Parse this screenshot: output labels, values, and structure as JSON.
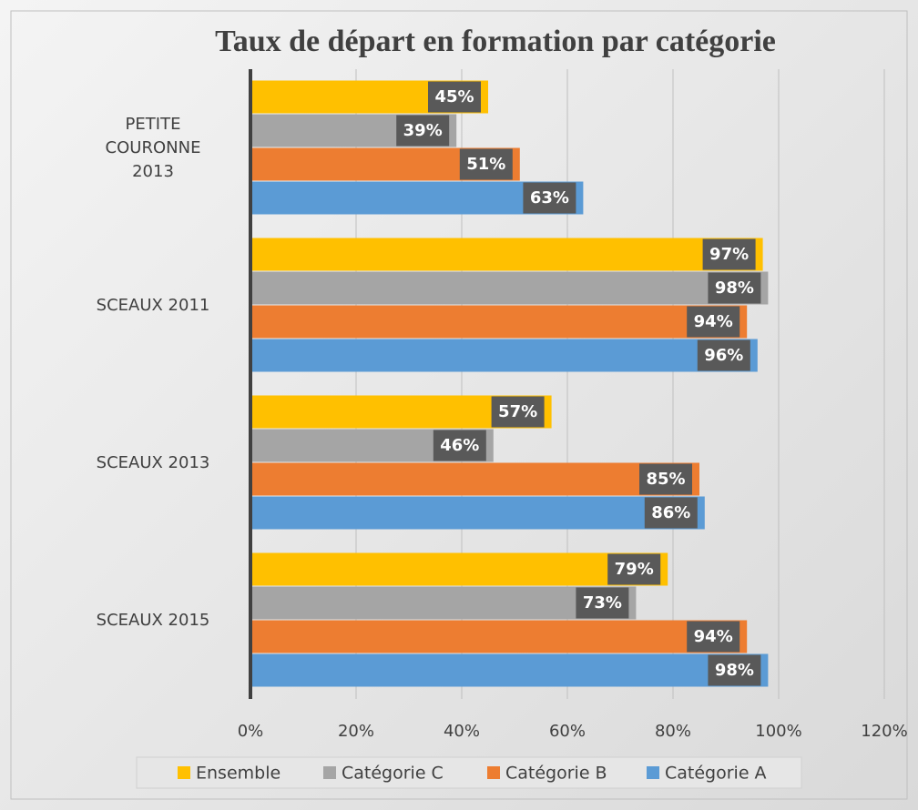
{
  "chart_data": {
    "type": "hbar",
    "title": "Taux de départ en formation par catégorie",
    "categories": [
      "PETITE COURONNE 2013",
      "SCEAUX 2011",
      "SCEAUX 2013",
      "SCEAUX 2015"
    ],
    "series": [
      {
        "name": "Ensemble",
        "color": "#ffc000",
        "values": [
          45,
          97,
          57,
          79
        ],
        "value_labels": [
          "45%",
          "97%",
          "57%",
          "79%"
        ]
      },
      {
        "name": "Catégorie C",
        "color": "#a5a5a5",
        "values": [
          39,
          98,
          46,
          73
        ],
        "value_labels": [
          "39%",
          "98%",
          "46%",
          "73%"
        ]
      },
      {
        "name": "Catégorie B",
        "color": "#ed7d31",
        "values": [
          51,
          94,
          85,
          94
        ],
        "value_labels": [
          "51%",
          "94%",
          "85%",
          "94%"
        ]
      },
      {
        "name": "Catégorie A",
        "color": "#5b9bd5",
        "values": [
          63,
          96,
          86,
          98
        ],
        "value_labels": [
          "63%",
          "96%",
          "86%",
          "98%"
        ]
      }
    ],
    "xlim": [
      0,
      120
    ],
    "xticks": [
      {
        "value": 0,
        "label": "0%"
      },
      {
        "value": 20,
        "label": "20%"
      },
      {
        "value": 40,
        "label": "40%"
      },
      {
        "value": 60,
        "label": "60%"
      },
      {
        "value": 80,
        "label": "80%"
      },
      {
        "value": 100,
        "label": "100%"
      },
      {
        "value": 120,
        "label": "120%"
      }
    ],
    "grid": true,
    "legend": "bottom"
  }
}
